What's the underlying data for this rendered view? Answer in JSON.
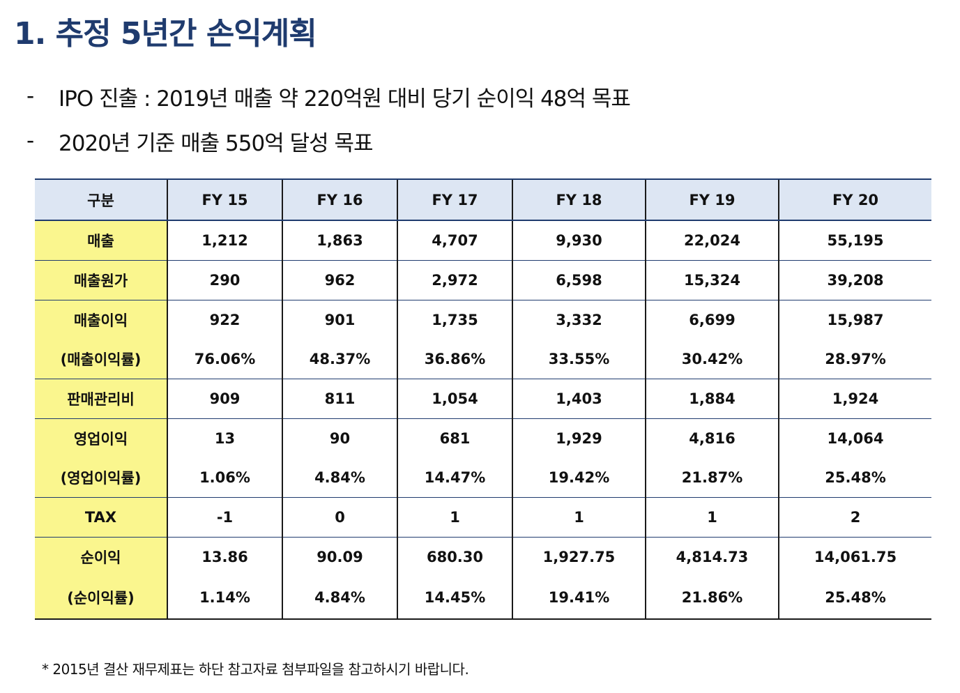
{
  "title": "1. 추정 5년간 손익계획",
  "bullets": [
    "IPO 진출 : 2019년 매출 약 220억원 대비 당기 순이익 48억 목표",
    "2020년 기준 매출 550억 달성 목표"
  ],
  "bullet_marker": "-",
  "table": {
    "headers": [
      "구분",
      "FY 15",
      "FY 16",
      "FY 17",
      "FY 18",
      "FY 19",
      "FY 20"
    ],
    "rows": [
      {
        "label": "매출",
        "values": [
          "1,212",
          "1,863",
          "4,707",
          "9,930",
          "22,024",
          "55,195"
        ]
      },
      {
        "label": "매출원가",
        "values": [
          "290",
          "962",
          "2,972",
          "6,598",
          "15,324",
          "39,208"
        ]
      },
      {
        "label": "매출이익",
        "values": [
          "922",
          "901",
          "1,735",
          "3,332",
          "6,699",
          "15,987"
        ]
      },
      {
        "label": "(매출이익률)",
        "values": [
          "76.06%",
          "48.37%",
          "36.86%",
          "33.55%",
          "30.42%",
          "28.97%"
        ]
      },
      {
        "label": "판매관리비",
        "values": [
          "909",
          "811",
          "1,054",
          "1,403",
          "1,884",
          "1,924"
        ]
      },
      {
        "label": "영업이익",
        "values": [
          "13",
          "90",
          "681",
          "1,929",
          "4,816",
          "14,064"
        ]
      },
      {
        "label": "(영업이익률)",
        "values": [
          "1.06%",
          "4.84%",
          "14.47%",
          "19.42%",
          "21.87%",
          "25.48%"
        ]
      },
      {
        "label": "TAX",
        "values": [
          "-1",
          "0",
          "1",
          "1",
          "1",
          "2"
        ]
      },
      {
        "label": "순이익",
        "values": [
          "13.86",
          "90.09",
          "680.30",
          "1,927.75",
          "4,814.73",
          "14,061.75"
        ]
      },
      {
        "label": "(순이익률)",
        "values": [
          "1.14%",
          "4.84%",
          "14.45%",
          "19.41%",
          "21.86%",
          "25.48%"
        ]
      }
    ]
  },
  "footnote": "* 2015년 결산 재무제표는 하단 참고자료 첨부파일을 참고하시기 바랍니다.",
  "colors": {
    "title": "#1f3b6e",
    "header_bg": "#dde6f3",
    "label_bg": "#faf68e",
    "rule": "#1f3b6e"
  }
}
